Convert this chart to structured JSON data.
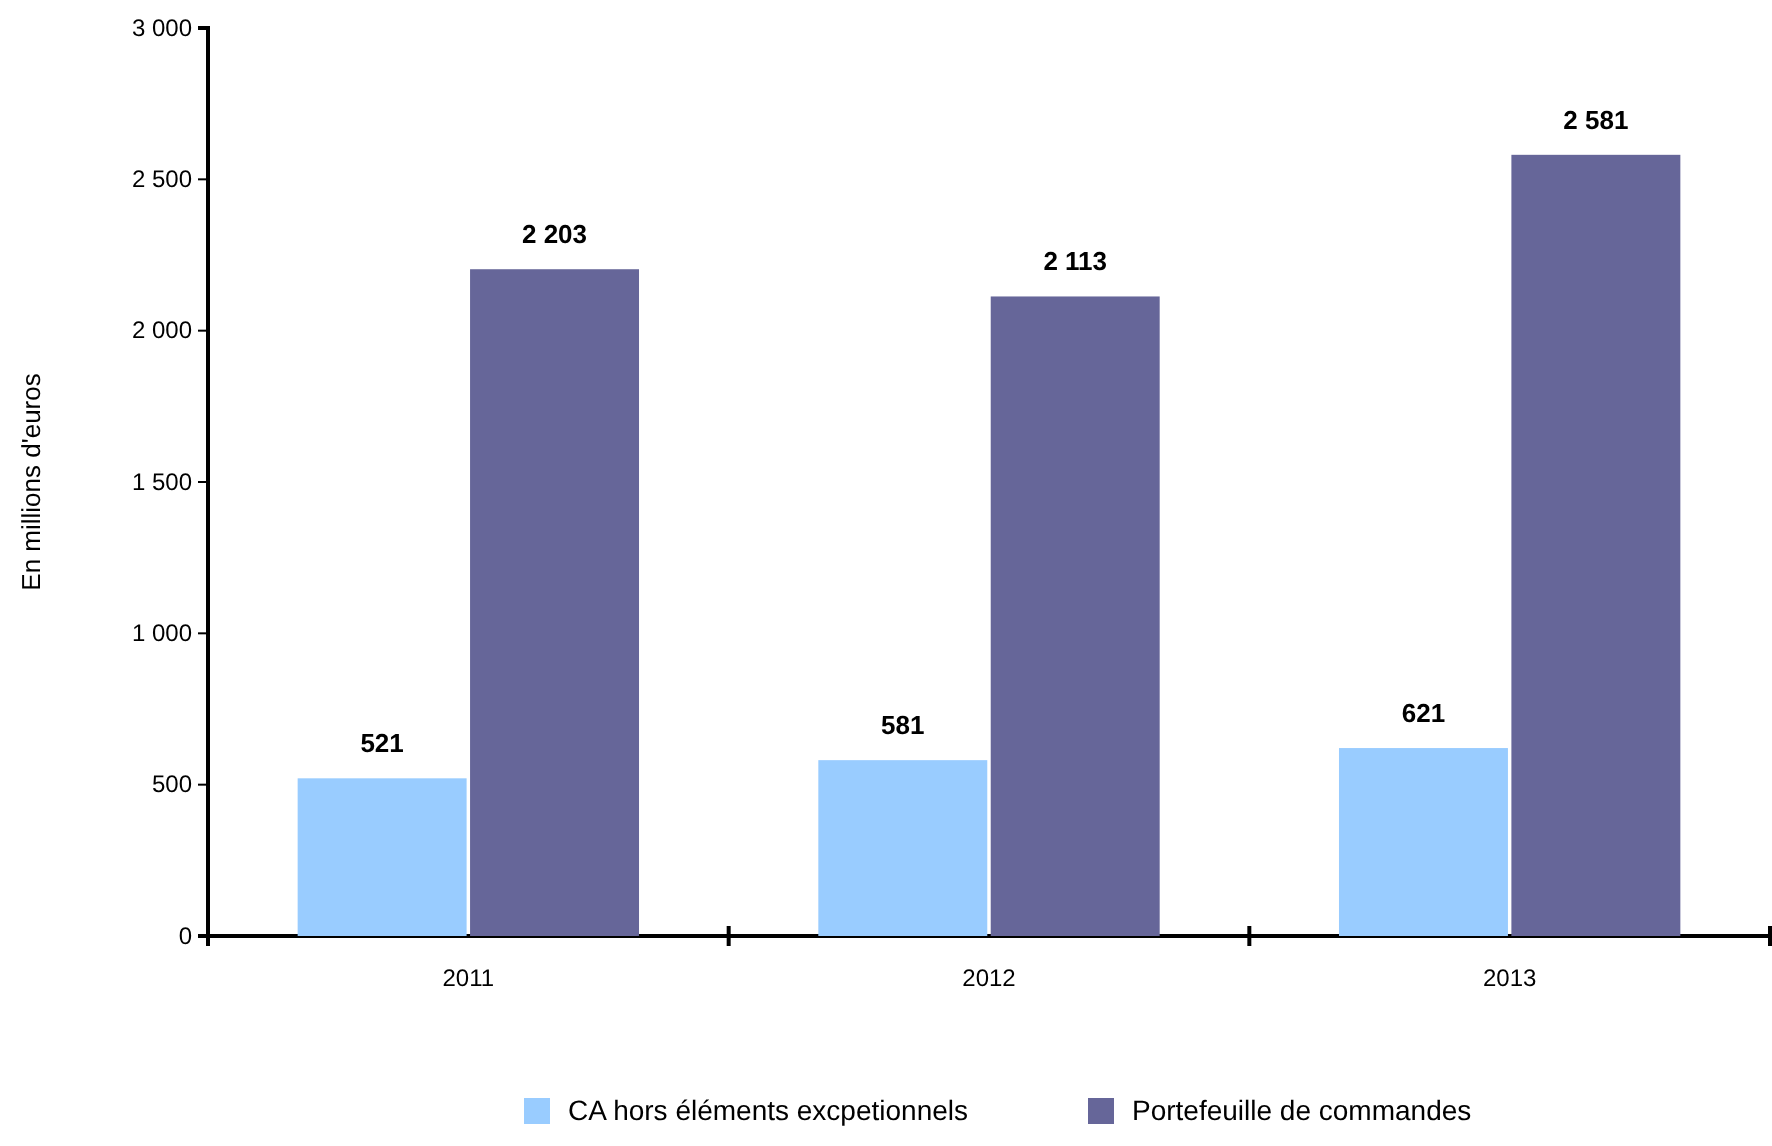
{
  "chart_data": {
    "type": "bar",
    "ylabel": "En millions d'euros",
    "categories": [
      "2011",
      "2012",
      "2013"
    ],
    "series": [
      {
        "name": "CA hors éléments excpetionnels",
        "color": "#99ccff",
        "values": [
          521,
          581,
          621
        ],
        "value_labels": [
          "521",
          "581",
          "621"
        ]
      },
      {
        "name": "Portefeuille de commandes",
        "color": "#666699",
        "values": [
          2203,
          2113,
          2581
        ],
        "value_labels": [
          "2 203",
          "2 113",
          "2 581"
        ]
      }
    ],
    "ylim": [
      0,
      3000
    ],
    "yticks": [
      0,
      500,
      {
        "value": 1000,
        "label": "1 000"
      },
      {
        "value": 1500,
        "label": "1 500"
      },
      {
        "value": 2000,
        "label": "2 000"
      },
      {
        "value": 2500,
        "label": "2 500"
      },
      {
        "value": 3000,
        "label": "3 000"
      }
    ],
    "grid": false,
    "legend": "bottom"
  }
}
